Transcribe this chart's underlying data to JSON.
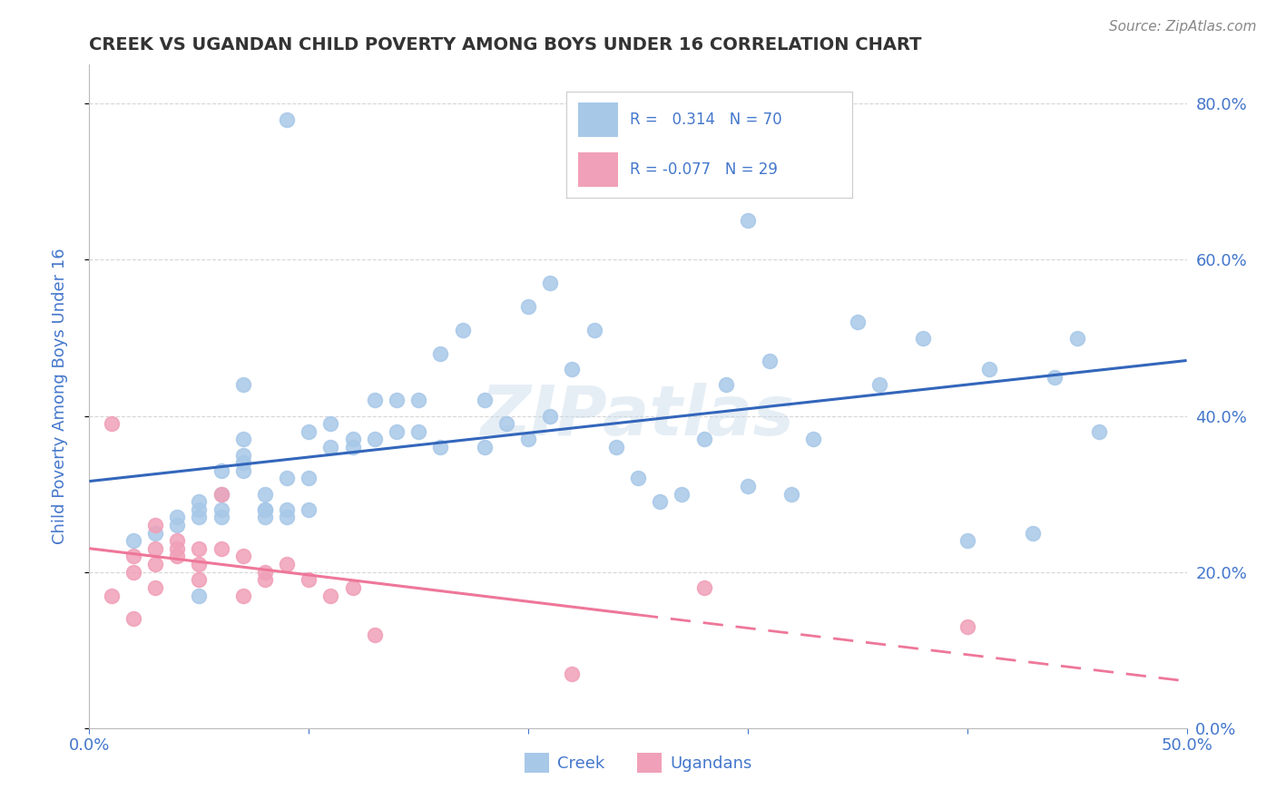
{
  "title": "CREEK VS UGANDAN CHILD POVERTY AMONG BOYS UNDER 16 CORRELATION CHART",
  "source": "Source: ZipAtlas.com",
  "ylabel": "Child Poverty Among Boys Under 16",
  "watermark": "ZIPatlas",
  "creek_r": 0.314,
  "creek_n": 70,
  "ugandan_r": -0.077,
  "ugandan_n": 29,
  "creek_color": "#a8c8e8",
  "ugandan_color": "#f0a0b8",
  "creek_line_color": "#3366bb",
  "ugandan_line_color": "#ee7799",
  "xlim": [
    0,
    0.5
  ],
  "ylim": [
    0,
    0.85
  ],
  "xticks": [
    0.0,
    0.1,
    0.2,
    0.3,
    0.4,
    0.5
  ],
  "yticks": [
    0.0,
    0.2,
    0.4,
    0.6,
    0.8
  ],
  "ytick_labels_right": [
    "0.0%",
    "20.0%",
    "40.0%",
    "60.0%",
    "80.0%"
  ],
  "xtick_labels": [
    "0.0%",
    "",
    "",
    "",
    "",
    "50.0%"
  ],
  "creek_scatter_x": [
    0.02,
    0.03,
    0.04,
    0.04,
    0.05,
    0.05,
    0.05,
    0.06,
    0.06,
    0.06,
    0.06,
    0.07,
    0.07,
    0.07,
    0.07,
    0.08,
    0.08,
    0.08,
    0.08,
    0.09,
    0.09,
    0.09,
    0.1,
    0.1,
    0.1,
    0.11,
    0.11,
    0.12,
    0.12,
    0.13,
    0.13,
    0.14,
    0.14,
    0.15,
    0.15,
    0.16,
    0.17,
    0.18,
    0.18,
    0.19,
    0.2,
    0.2,
    0.21,
    0.22,
    0.23,
    0.24,
    0.25,
    0.26,
    0.27,
    0.28,
    0.29,
    0.3,
    0.31,
    0.32,
    0.33,
    0.35,
    0.36,
    0.38,
    0.4,
    0.41,
    0.43,
    0.44,
    0.45,
    0.46,
    0.3,
    0.21,
    0.09,
    0.16,
    0.07,
    0.05
  ],
  "creek_scatter_y": [
    0.24,
    0.25,
    0.26,
    0.27,
    0.27,
    0.28,
    0.29,
    0.27,
    0.28,
    0.3,
    0.33,
    0.35,
    0.33,
    0.34,
    0.37,
    0.27,
    0.28,
    0.28,
    0.3,
    0.27,
    0.28,
    0.32,
    0.28,
    0.32,
    0.38,
    0.36,
    0.39,
    0.36,
    0.37,
    0.37,
    0.42,
    0.38,
    0.42,
    0.38,
    0.42,
    0.36,
    0.51,
    0.36,
    0.42,
    0.39,
    0.37,
    0.54,
    0.4,
    0.46,
    0.51,
    0.36,
    0.32,
    0.29,
    0.3,
    0.37,
    0.44,
    0.31,
    0.47,
    0.3,
    0.37,
    0.52,
    0.44,
    0.5,
    0.24,
    0.46,
    0.25,
    0.45,
    0.5,
    0.38,
    0.65,
    0.57,
    0.78,
    0.48,
    0.44,
    0.17
  ],
  "ugandan_scatter_x": [
    0.01,
    0.01,
    0.02,
    0.02,
    0.02,
    0.03,
    0.03,
    0.03,
    0.03,
    0.04,
    0.04,
    0.04,
    0.05,
    0.05,
    0.05,
    0.06,
    0.06,
    0.07,
    0.07,
    0.08,
    0.08,
    0.09,
    0.1,
    0.11,
    0.12,
    0.13,
    0.22,
    0.28,
    0.4
  ],
  "ugandan_scatter_y": [
    0.39,
    0.17,
    0.14,
    0.2,
    0.22,
    0.18,
    0.21,
    0.23,
    0.26,
    0.22,
    0.23,
    0.24,
    0.19,
    0.21,
    0.23,
    0.23,
    0.3,
    0.17,
    0.22,
    0.19,
    0.2,
    0.21,
    0.19,
    0.17,
    0.18,
    0.12,
    0.07,
    0.18,
    0.13
  ],
  "background_color": "#ffffff",
  "grid_color": "#cccccc",
  "title_color": "#333333",
  "axis_color": "#4477cc",
  "source_color": "#888888"
}
